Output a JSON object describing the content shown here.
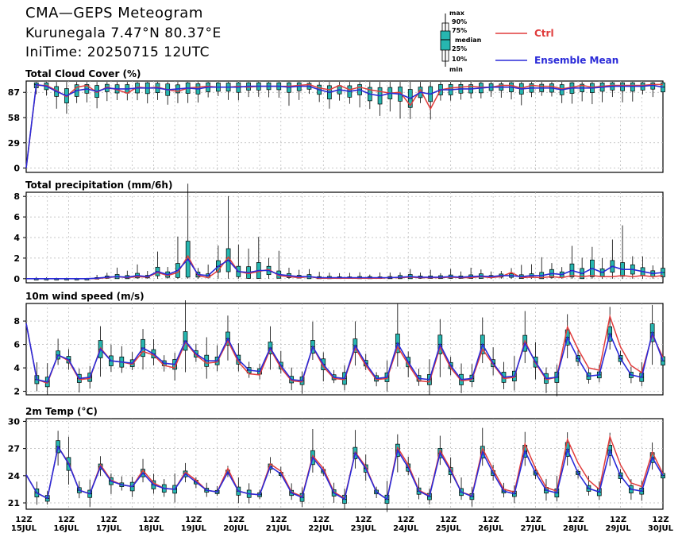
{
  "header": {
    "title": "CMA—GEPS Meteogram",
    "location": "Kurunegala 7.47°N 80.37°E",
    "init": "IniTime: 20250715 12UTC"
  },
  "legend": {
    "box_labels": [
      "max",
      "90%",
      "75%",
      "median",
      "25%",
      "10%",
      "min"
    ],
    "ctrl_label": "Ctrl",
    "mean_label": "Ensemble Mean",
    "ctrl_color": "#e03c3c",
    "mean_color": "#2a2ad8",
    "box_color": "#27b6b0"
  },
  "chart_data": [
    {
      "type": "line",
      "title": "Total Cloud Cover (%)",
      "yticks": [
        0,
        29,
        58,
        87
      ],
      "ylim": [
        -5,
        100
      ],
      "grid": true,
      "series": [
        {
          "name": "Ctrl",
          "values": [
            0,
            95,
            95,
            89,
            82,
            93,
            95,
            87,
            93,
            90,
            86,
            93,
            92,
            93,
            90,
            88,
            92,
            93,
            94,
            93,
            93,
            94,
            93,
            94,
            94,
            94,
            94,
            95,
            96,
            92,
            90,
            95,
            90,
            93,
            90,
            88,
            86,
            87,
            72,
            90,
            68,
            90,
            92,
            93,
            94,
            93,
            93,
            95,
            95,
            92,
            95,
            94,
            94,
            91,
            93,
            95,
            93,
            94,
            95,
            95,
            95,
            95,
            96,
            96
          ]
        },
        {
          "name": "Ensemble Mean",
          "values": [
            0,
            96,
            94,
            88,
            83,
            89,
            91,
            88,
            92,
            91,
            91,
            92,
            92,
            92,
            90,
            91,
            92,
            91,
            93,
            93,
            93,
            93,
            94,
            94,
            94,
            94,
            93,
            94,
            94,
            90,
            87,
            90,
            88,
            90,
            85,
            83,
            86,
            85,
            80,
            87,
            85,
            90,
            90,
            91,
            91,
            92,
            93,
            93,
            93,
            91,
            92,
            92,
            92,
            90,
            92,
            92,
            92,
            93,
            94,
            94,
            94,
            94,
            95,
            93
          ]
        }
      ]
    },
    {
      "type": "line",
      "title": "Total precipitation (mm/6h)",
      "yticks": [
        0,
        2,
        4,
        6,
        8
      ],
      "ylim": [
        -0.4,
        8.4
      ],
      "grid": true,
      "series": [
        {
          "name": "Ctrl",
          "values": [
            0,
            0,
            0,
            0,
            0,
            0,
            0,
            0.02,
            0.1,
            0.2,
            0.1,
            0.2,
            0.15,
            0.6,
            0.3,
            0.6,
            2.2,
            0.3,
            0.1,
            0.8,
            2.1,
            0.7,
            0.5,
            0.7,
            0.9,
            0.3,
            0.2,
            0.1,
            0.2,
            0.05,
            0.05,
            0.05,
            0.05,
            0.05,
            0.05,
            0.05,
            0.1,
            0.1,
            0.15,
            0.1,
            0.1,
            0.1,
            0.15,
            0.1,
            0.1,
            0.2,
            0.1,
            0.2,
            0.6,
            0.1,
            0.15,
            0.1,
            0.2,
            0.1,
            0.3,
            0.2,
            0.3,
            0.2,
            0.2,
            0.3,
            0.2,
            0.3,
            0.2,
            0.3
          ]
        },
        {
          "name": "Ensemble Mean",
          "values": [
            0,
            0,
            0,
            0,
            0,
            0,
            0,
            0.05,
            0.15,
            0.2,
            0.15,
            0.3,
            0.2,
            0.7,
            0.4,
            0.8,
            1.9,
            0.4,
            0.3,
            1.2,
            1.8,
            0.7,
            0.6,
            0.8,
            0.8,
            0.4,
            0.3,
            0.2,
            0.2,
            0.1,
            0.1,
            0.1,
            0.1,
            0.1,
            0.1,
            0.1,
            0.1,
            0.15,
            0.2,
            0.15,
            0.15,
            0.15,
            0.2,
            0.15,
            0.2,
            0.25,
            0.2,
            0.3,
            0.3,
            0.2,
            0.3,
            0.3,
            0.5,
            0.4,
            0.8,
            0.5,
            1.0,
            0.6,
            1.2,
            0.9,
            0.9,
            0.7,
            0.5,
            0.6
          ]
        }
      ]
    },
    {
      "type": "line",
      "title": "10m wind speed (m/s)",
      "yticks": [
        2,
        4,
        6,
        8
      ],
      "ylim": [
        1.7,
        9.5
      ],
      "grid": true,
      "series": [
        {
          "name": "Ctrl",
          "values": [
            7.8,
            3.0,
            2.7,
            5.1,
            4.6,
            3.0,
            3.1,
            5.7,
            4.6,
            4.5,
            4.3,
            5.4,
            5.1,
            4.2,
            4.0,
            6.2,
            5.1,
            4.4,
            4.5,
            6.3,
            4.5,
            3.5,
            3.4,
            5.6,
            4.0,
            2.9,
            2.8,
            5.8,
            4.1,
            3.1,
            3.0,
            5.7,
            4.2,
            3.0,
            3.1,
            5.8,
            4.3,
            2.9,
            2.8,
            5.8,
            4.0,
            2.9,
            3.0,
            5.6,
            4.3,
            3.1,
            3.2,
            6.3,
            4.4,
            3.0,
            3.2,
            7.5,
            5.6,
            4.0,
            3.8,
            8.4,
            5.8,
            4.2,
            3.6,
            6.8,
            4.9
          ]
        },
        {
          "name": "Ensemble Mean",
          "values": [
            7.8,
            3.0,
            2.8,
            5.1,
            4.7,
            3.1,
            3.2,
            5.6,
            4.6,
            4.5,
            4.4,
            5.7,
            5.2,
            4.4,
            4.3,
            6.3,
            5.2,
            4.6,
            4.6,
            6.5,
            4.7,
            3.8,
            3.7,
            5.7,
            4.2,
            3.0,
            2.9,
            5.8,
            4.3,
            3.2,
            3.1,
            5.9,
            4.4,
            3.1,
            3.2,
            6.1,
            4.5,
            3.1,
            3.0,
            6.0,
            4.2,
            3.0,
            3.1,
            6.0,
            4.4,
            3.2,
            3.3,
            6.1,
            4.5,
            3.1,
            3.2,
            6.6,
            4.8,
            3.3,
            3.4,
            6.9,
            4.8,
            3.4,
            3.2,
            7.0,
            4.6
          ]
        }
      ]
    },
    {
      "type": "line",
      "title": "2m Temp (°C)",
      "yticks": [
        21,
        24,
        27,
        30
      ],
      "ylim": [
        20.3,
        30.3
      ],
      "grid": true,
      "series": [
        {
          "name": "Ctrl",
          "values": [
            24.1,
            22.1,
            21.5,
            27.2,
            25.4,
            22.4,
            22.0,
            25.2,
            23.5,
            23.0,
            22.8,
            24.6,
            23.2,
            22.6,
            22.5,
            24.4,
            23.5,
            22.4,
            22.2,
            24.8,
            22.3,
            22.0,
            21.9,
            25.3,
            24.5,
            22.2,
            21.7,
            26.2,
            24.8,
            22.2,
            21.5,
            26.6,
            25.0,
            22.2,
            21.4,
            27.1,
            25.2,
            22.4,
            21.8,
            26.8,
            24.7,
            22.2,
            21.8,
            27.0,
            24.7,
            22.5,
            22.2,
            27.5,
            24.8,
            22.7,
            22.3,
            28.0,
            25.4,
            23.5,
            22.5,
            28.3,
            25.2,
            23.2,
            22.8,
            26.6,
            24.2
          ]
        },
        {
          "name": "Ensemble Mean",
          "values": [
            24.1,
            22.1,
            21.5,
            27.2,
            25.3,
            22.4,
            22.0,
            25.0,
            23.4,
            23.0,
            22.8,
            24.3,
            23.0,
            22.6,
            22.5,
            24.2,
            23.3,
            22.4,
            22.2,
            24.4,
            22.3,
            22.0,
            21.9,
            25.0,
            24.2,
            22.1,
            21.6,
            26.0,
            24.5,
            22.1,
            21.4,
            26.5,
            24.8,
            22.2,
            21.4,
            26.8,
            24.9,
            22.3,
            21.7,
            26.5,
            24.5,
            22.2,
            21.7,
            26.6,
            24.3,
            22.3,
            22.0,
            26.7,
            24.3,
            22.4,
            22.1,
            26.9,
            24.3,
            22.6,
            22.2,
            26.8,
            24.0,
            22.5,
            22.3,
            26.0,
            24.0
          ]
        }
      ]
    }
  ],
  "xaxis": {
    "hour_labels": [
      "12Z",
      "12Z",
      "12Z",
      "12Z",
      "12Z",
      "12Z",
      "12Z",
      "12Z",
      "12Z",
      "12Z",
      "12Z",
      "12Z",
      "12Z",
      "12Z",
      "12Z",
      "12Z"
    ],
    "date_labels": [
      "15JUL",
      "16JUL",
      "17JUL",
      "18JUL",
      "19JUL",
      "20JUL",
      "21JUL",
      "22JUL",
      "23JUL",
      "24JUL",
      "25JUL",
      "26JUL",
      "27JUL",
      "28JUL",
      "29JUL",
      "30JUL"
    ]
  }
}
